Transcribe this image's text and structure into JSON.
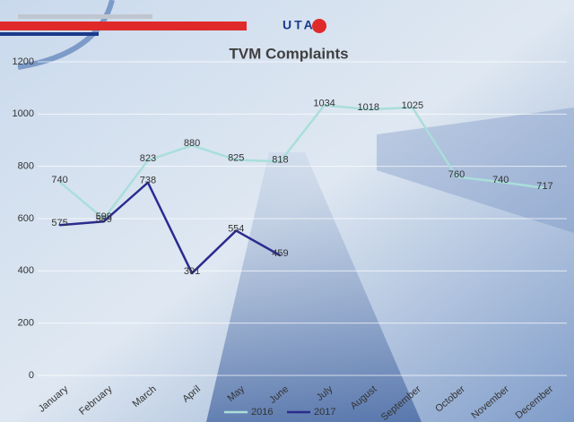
{
  "chart_data": {
    "type": "line",
    "title": "TVM Complaints",
    "logo_text": "UTA",
    "categories": [
      "January",
      "February",
      "March",
      "April",
      "May",
      "June",
      "July",
      "August",
      "September",
      "October",
      "November",
      "December"
    ],
    "series": [
      {
        "name": "2016",
        "color": "#a9dedb",
        "values": [
          740,
          599,
          823,
          880,
          825,
          818,
          1034,
          1018,
          1025,
          760,
          740,
          717
        ]
      },
      {
        "name": "2017",
        "color": "#2b2b8f",
        "values": [
          575,
          589,
          738,
          391,
          554,
          459,
          null,
          null,
          null,
          null,
          null,
          null
        ]
      }
    ],
    "ylim": [
      0,
      1200
    ],
    "yticks": [
      0,
      200,
      400,
      600,
      800,
      1000,
      1200
    ],
    "grid": true,
    "legend": "bottom"
  }
}
